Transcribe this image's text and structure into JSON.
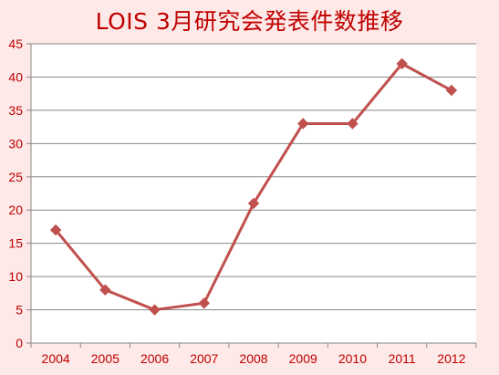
{
  "chart_data": {
    "type": "line",
    "title": "LOIS 3月研究会発表件数推移",
    "categories": [
      "2004",
      "2005",
      "2006",
      "2007",
      "2008",
      "2009",
      "2010",
      "2011",
      "2012"
    ],
    "series": [
      {
        "values": [
          17,
          8,
          5,
          6,
          21,
          33,
          33,
          42,
          38
        ]
      }
    ],
    "xlabel": "",
    "ylabel": "",
    "ylim": [
      0,
      45
    ],
    "yticks": [
      0,
      5,
      10,
      15,
      20,
      25,
      30,
      35,
      40,
      45
    ],
    "grid": true,
    "legend": "none",
    "colors": {
      "line": "#c0504d",
      "text": "#c00000",
      "grid": "#888888",
      "plot_background": "#ffffff",
      "chart_background": "#fde9e8"
    }
  }
}
